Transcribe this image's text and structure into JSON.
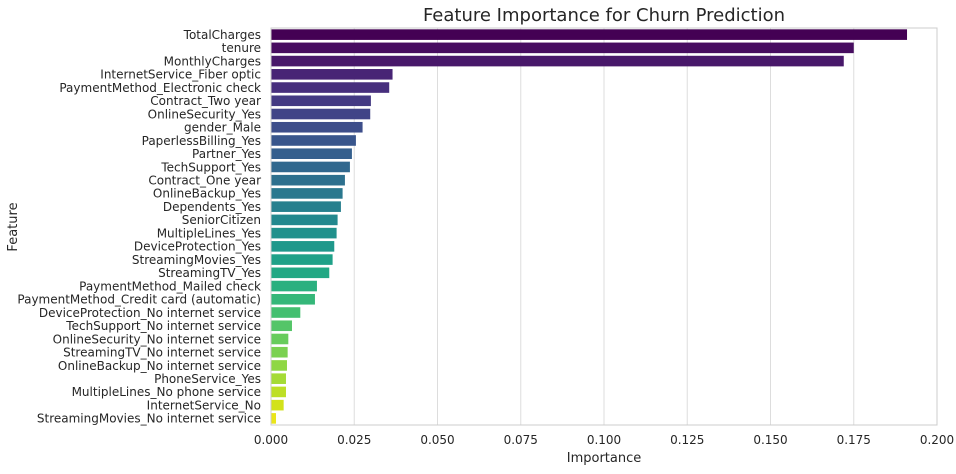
{
  "chart_data": {
    "type": "bar",
    "orientation": "horizontal",
    "title": "Feature Importance for Churn Prediction",
    "xlabel": "Importance",
    "ylabel": "Feature",
    "xlim": [
      0.0,
      0.2
    ],
    "x_ticks": [
      "0.000",
      "0.025",
      "0.050",
      "0.075",
      "0.100",
      "0.125",
      "0.150",
      "0.175",
      "0.200"
    ],
    "grid": "vertical",
    "palette": "viridis",
    "categories": [
      "TotalCharges",
      "tenure",
      "MonthlyCharges",
      "InternetService_Fiber optic",
      "PaymentMethod_Electronic check",
      "Contract_Two year",
      "OnlineSecurity_Yes",
      "gender_Male",
      "PaperlessBilling_Yes",
      "Partner_Yes",
      "TechSupport_Yes",
      "Contract_One year",
      "OnlineBackup_Yes",
      "Dependents_Yes",
      "SeniorCitizen",
      "MultipleLines_Yes",
      "DeviceProtection_Yes",
      "StreamingMovies_Yes",
      "StreamingTV_Yes",
      "PaymentMethod_Mailed check",
      "PaymentMethod_Credit card (automatic)",
      "DeviceProtection_No internet service",
      "TechSupport_No internet service",
      "OnlineSecurity_No internet service",
      "StreamingTV_No internet service",
      "OnlineBackup_No internet service",
      "PhoneService_Yes",
      "MultipleLines_No phone service",
      "InternetService_No",
      "StreamingMovies_No internet service"
    ],
    "values": [
      0.191,
      0.175,
      0.172,
      0.0365,
      0.0355,
      0.03,
      0.0298,
      0.0275,
      0.0255,
      0.0243,
      0.0237,
      0.0222,
      0.0215,
      0.021,
      0.02,
      0.0197,
      0.019,
      0.0185,
      0.0175,
      0.0138,
      0.0132,
      0.0088,
      0.0063,
      0.0052,
      0.005,
      0.0048,
      0.0045,
      0.0045,
      0.0038,
      0.0015
    ],
    "colors": [
      "#440154",
      "#470d60",
      "#48186a",
      "#482475",
      "#472f7d",
      "#443a83",
      "#414487",
      "#3d4e8a",
      "#39568c",
      "#355f8d",
      "#31688e",
      "#2d708e",
      "#2a788e",
      "#27808e",
      "#23888e",
      "#21918c",
      "#1f988b",
      "#1fa188",
      "#22a884",
      "#2ab07f",
      "#35b779",
      "#44bf70",
      "#54c568",
      "#67cc5c",
      "#7ad151",
      "#8fd744",
      "#a5db36",
      "#bddf26",
      "#d2e21b",
      "#eae51a"
    ]
  }
}
